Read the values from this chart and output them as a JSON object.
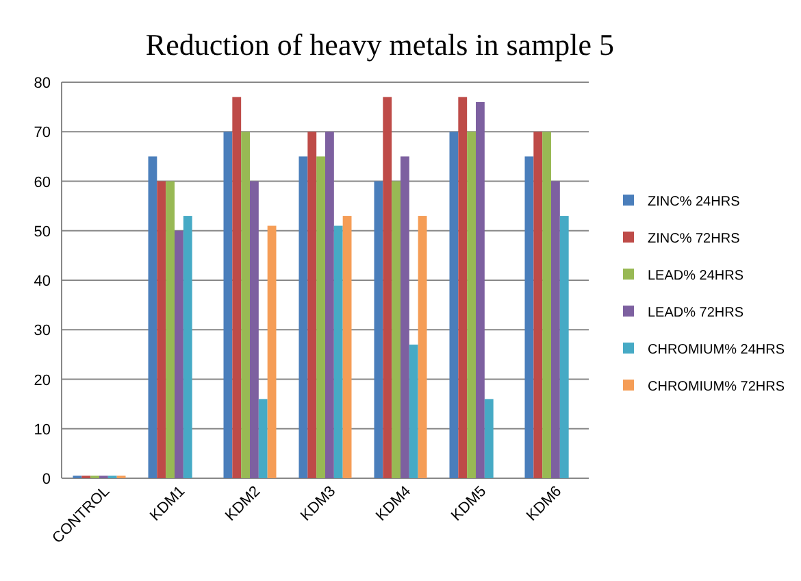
{
  "chart_data": {
    "type": "bar",
    "title": "Reduction of heavy metals in sample 5",
    "categories": [
      "CONTROL",
      "KDM1",
      "KDM2",
      "KDM3",
      "KDM4",
      "KDM5",
      "KDM6"
    ],
    "series": [
      {
        "name": "ZINC% 24HRS",
        "color": "#4a7ebb",
        "values": [
          0.5,
          65,
          70,
          65,
          60,
          70,
          65
        ]
      },
      {
        "name": "ZINC% 72HRS",
        "color": "#be4b48",
        "values": [
          0.5,
          60,
          77,
          70,
          77,
          77,
          70
        ]
      },
      {
        "name": "LEAD% 24HRS",
        "color": "#98b954",
        "values": [
          0.5,
          60,
          70,
          65,
          60,
          70,
          70
        ]
      },
      {
        "name": "LEAD% 72HRS",
        "color": "#7d60a0",
        "values": [
          0.5,
          50,
          60,
          70,
          65,
          76,
          60
        ]
      },
      {
        "name": "CHROMIUM% 24HRS",
        "color": "#46aac5",
        "values": [
          0.5,
          53,
          16,
          51,
          27,
          16,
          53
        ]
      },
      {
        "name": "CHROMIUM% 72HRS",
        "color": "#f59d56",
        "values": [
          0.5,
          0,
          51,
          53,
          53,
          0,
          0
        ]
      }
    ],
    "ylim": [
      0,
      80
    ],
    "yticks": [
      0,
      10,
      20,
      30,
      40,
      50,
      60,
      70,
      80
    ],
    "grid": "y",
    "legend": "right"
  }
}
